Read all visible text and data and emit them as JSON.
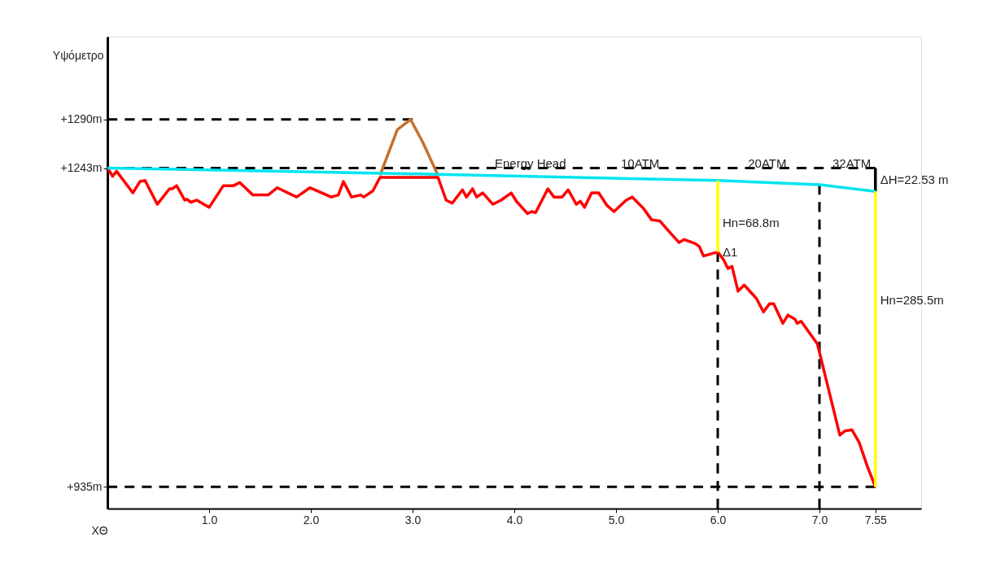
{
  "chart_data": {
    "type": "line",
    "xlabel": "ΧΘ",
    "ylabel": "Υψόμετρο",
    "xlim": [
      0,
      8.0
    ],
    "ylim": [
      914,
      1370
    ],
    "xticks": [
      {
        "value": 1,
        "label": "1.0"
      },
      {
        "value": 2,
        "label": "2.0"
      },
      {
        "value": 3,
        "label": "3.0"
      },
      {
        "value": 4,
        "label": "4.0"
      },
      {
        "value": 5,
        "label": "5.0"
      },
      {
        "value": 6,
        "label": "6.0"
      },
      {
        "value": 7,
        "label": "7.0"
      },
      {
        "value": 7.55,
        "label": "7.55"
      }
    ],
    "yticks": [
      {
        "value": 935,
        "label": "+935m"
      },
      {
        "value": 1243,
        "label": "+1243m"
      },
      {
        "value": 1290,
        "label": "+1290m"
      }
    ],
    "grid": false,
    "marker": "none",
    "series": [
      {
        "color": "#000000",
        "line_style": "dashed",
        "x": [
          0,
          3.0
        ],
        "values": [
          1290,
          1290
        ]
      },
      {
        "color": "#000000",
        "line_style": "dashed",
        "x": [
          0,
          7.55
        ],
        "values": [
          1243,
          1243
        ]
      },
      {
        "color": "#000000",
        "line_style": "dashed",
        "x": [
          0,
          7.55
        ],
        "values": [
          935,
          935
        ]
      },
      {
        "color": "#000000",
        "line_style": "dashed",
        "x": [
          6.0,
          6.0
        ],
        "values": [
          914,
          1162
        ]
      },
      {
        "color": "#000000",
        "line_style": "dashed",
        "x": [
          7.0,
          7.0
        ],
        "values": [
          914,
          1227
        ]
      },
      {
        "color": "#000000",
        "line_style": "solid",
        "x": [
          7.55,
          7.55
        ],
        "values": [
          1243,
          1220.5
        ]
      },
      {
        "color": "#ff0000",
        "line_style": "solid",
        "x": [
          0.01,
          0.05,
          0.09,
          0.25,
          0.32,
          0.37,
          0.49,
          0.61,
          0.64,
          0.68,
          0.76,
          0.78,
          0.82,
          0.88,
          1.0,
          1.14,
          1.24,
          1.3,
          1.43,
          1.58,
          1.67,
          1.86,
          1.99,
          2.11,
          2.2,
          2.27,
          2.32,
          2.4,
          2.49,
          2.52,
          2.61,
          2.68,
          3.25,
          3.33,
          3.39,
          3.49,
          3.53,
          3.59,
          3.63,
          3.69,
          3.79,
          3.87,
          3.97,
          4.02,
          4.13,
          4.17,
          4.21,
          4.33,
          4.39,
          4.47,
          4.53,
          4.61,
          4.65,
          4.69,
          4.76,
          4.83,
          4.91,
          4.98,
          5.1,
          5.16,
          5.27,
          5.35,
          5.43,
          5.51,
          5.62,
          5.67,
          5.78,
          5.82,
          5.86,
          6.0,
          6.06,
          6.1,
          6.14,
          6.2,
          6.26,
          6.38,
          6.45,
          6.51,
          6.55,
          6.64,
          6.69,
          6.76,
          6.78,
          6.82,
          6.98,
          7.2,
          7.25,
          7.32,
          7.39,
          7.47,
          7.55
        ],
        "values": [
          1242,
          1235,
          1240,
          1219,
          1230,
          1231,
          1208,
          1223,
          1223,
          1226,
          1212,
          1213,
          1210,
          1212,
          1205,
          1226,
          1226,
          1229,
          1217,
          1217,
          1224,
          1215,
          1224,
          1219,
          1215,
          1217,
          1230,
          1215,
          1217,
          1215,
          1221,
          1234,
          1234,
          1212,
          1209,
          1222,
          1215,
          1223,
          1215,
          1219,
          1208,
          1212,
          1219,
          1211,
          1199,
          1201,
          1200,
          1223,
          1215,
          1215,
          1222,
          1208,
          1211,
          1205,
          1219,
          1219,
          1207,
          1201,
          1212,
          1215,
          1204,
          1193,
          1192,
          1183,
          1171,
          1174,
          1170,
          1167,
          1158,
          1162,
          1154,
          1146,
          1148,
          1124,
          1130,
          1117,
          1104,
          1112,
          1112,
          1093,
          1101,
          1097,
          1093,
          1095,
          1073,
          985,
          989,
          990,
          978,
          955,
          935
        ]
      },
      {
        "color": "#c8702a",
        "line_style": "solid",
        "x": [
          2.68,
          2.85,
          2.98,
          3.1,
          3.25
        ],
        "values": [
          1236,
          1280,
          1290,
          1268,
          1236
        ]
      },
      {
        "color": "#00e5f0",
        "line_style": "solid",
        "x": [
          0,
          3.25,
          6.0,
          7.0,
          7.55
        ],
        "values": [
          1243,
          1237,
          1231,
          1227,
          1220.5
        ]
      },
      {
        "color": "#ffff00",
        "line_style": "solid",
        "x": [
          6.0,
          6.0
        ],
        "values": [
          1231,
          1162
        ]
      },
      {
        "color": "#ffff00",
        "line_style": "solid",
        "x": [
          7.55,
          7.55
        ],
        "values": [
          1220.5,
          935
        ]
      }
    ],
    "annotations": [
      {
        "text": "Energy Head",
        "x": 3.76,
        "y": 1247
      },
      {
        "text": "10ATM",
        "x": 5.0,
        "y": 1247
      },
      {
        "text": "20ATM",
        "x": 6.25,
        "y": 1247
      },
      {
        "text": "32ATM",
        "x": 7.08,
        "y": 1247
      },
      {
        "text": "ΔH=22.53 m",
        "x": 7.55,
        "y": 1232
      },
      {
        "text": "Hn=68.8m",
        "x": 6.0,
        "y": 1190
      },
      {
        "text": "Δ1",
        "x": 6.0,
        "y": 1162
      },
      {
        "text": "Hn=285.5m",
        "x": 7.55,
        "y": 1115
      }
    ]
  }
}
